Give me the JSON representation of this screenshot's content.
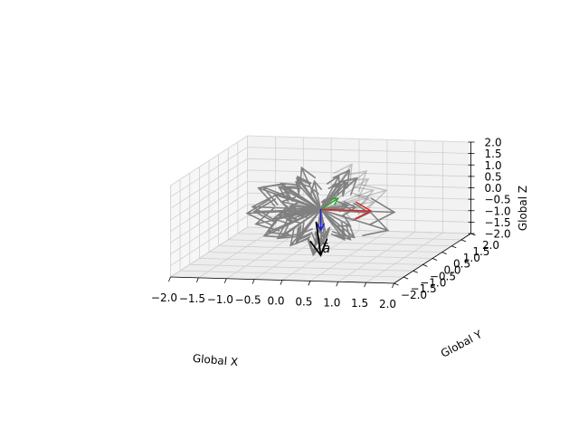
{
  "chart_data": {
    "type": "3d-quiver",
    "axes": {
      "x": {
        "label": "Global X",
        "range": [
          -2.0,
          2.0
        ],
        "ticks": [
          "−2.0",
          "−1.5",
          "−1.0",
          "−0.5",
          "0.0",
          "0.5",
          "1.0",
          "1.5",
          "2.0"
        ]
      },
      "y": {
        "label": "Global Y",
        "range": [
          -2.0,
          2.0
        ],
        "ticks": [
          "−2.0",
          "−1.5",
          "−1.0",
          "−0.5",
          "0.0",
          "0.5",
          "1.0",
          "1.5",
          "2.0"
        ]
      },
      "z": {
        "label": "Global Z",
        "range": [
          -2.0,
          2.0
        ],
        "ticks": [
          "−2.0",
          "−1.5",
          "−1.0",
          "−0.5",
          "0.0",
          "0.5",
          "1.0",
          "1.5",
          "2.0"
        ]
      }
    },
    "grid": true,
    "frame_axes": [
      {
        "color": "#d62728",
        "vector": [
          0.9,
          0,
          0
        ]
      },
      {
        "color": "#2ca02c",
        "vector": [
          0,
          0.9,
          0
        ]
      },
      {
        "color": "#1f1fd6",
        "vector": [
          0,
          0,
          -0.9
        ]
      }
    ],
    "vectors": [
      {
        "name": "a",
        "color": "#000000",
        "vector": [
          0,
          0,
          -2.0
        ]
      }
    ],
    "cluster_color": "#808080",
    "cluster_vector_count": 70
  }
}
